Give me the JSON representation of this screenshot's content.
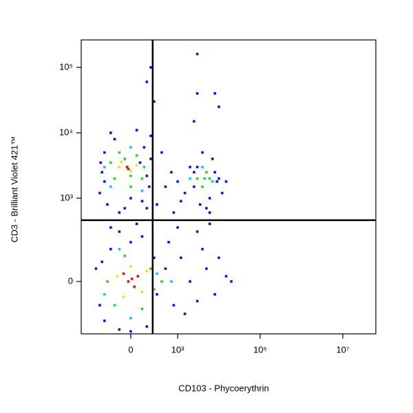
{
  "chart_data": {
    "type": "scatter",
    "xlabel": "CD103 - Phycoerythrin",
    "ylabel": "CD3 - Brilliant Violet 421™",
    "xscale": "asinh",
    "x_linear_width": 147,
    "yscale": "asinh",
    "y_linear_width": 107,
    "xlim": [
      -1157,
      63000000
    ],
    "ylim": [
      -329,
      262800
    ],
    "xticks": [
      0,
      {
        "value": 1000,
        "label": "10³"
      },
      {
        "value": 100000,
        "label": "10⁵"
      },
      {
        "value": 10000000,
        "label": "10⁷"
      }
    ],
    "yticks": [
      0,
      {
        "value": 1000,
        "label": "10³"
      },
      {
        "value": 10000,
        "label": "10⁴"
      },
      {
        "value": 100000,
        "label": "10⁵"
      }
    ],
    "gates": {
      "x": 228,
      "y": 457
    },
    "series": [
      {
        "color": "#1010e0",
        "x": [
          -400,
          -250,
          -100,
          150,
          100,
          -350,
          -300,
          -150,
          120,
          200,
          180,
          -200,
          50,
          -50,
          0,
          -300,
          150,
          80,
          -380,
          200,
          300,
          500,
          700,
          1000,
          1500,
          2000,
          1200,
          800,
          400,
          2500,
          3000,
          6000,
          8000,
          9000,
          5000,
          3500,
          7000,
          10000,
          15000,
          4000,
          2500,
          12000,
          6000,
          200,
          150,
          250,
          3000,
          3000,
          8000,
          10000,
          2500,
          -500,
          -400,
          -300,
          -200,
          150,
          250,
          300,
          500,
          800,
          1200,
          2000,
          3000,
          5000,
          8000,
          15000,
          20000,
          -100,
          0,
          600,
          1500,
          4000,
          10000,
          0,
          -350,
          -100,
          50,
          100,
          -200,
          1000,
          3000,
          6000
        ],
        "values": [
          1200,
          800,
          600,
          700,
          900,
          2500,
          5000,
          8000,
          6000,
          4000,
          1500,
          10000,
          11000,
          700,
          1000,
          1800,
          2200,
          3500,
          3500,
          9000,
          800,
          1500,
          2500,
          1800,
          1200,
          3000,
          900,
          600,
          5000,
          1500,
          3000,
          1000,
          2500,
          1800,
          700,
          800,
          4000,
          2000,
          1800,
          5000,
          2500,
          1200,
          600,
          100000,
          60000,
          30000,
          160000,
          40000,
          40000,
          25000,
          15000,
          50,
          -100,
          -200,
          150,
          -250,
          100,
          -50,
          50,
          -100,
          100,
          0,
          -80,
          50,
          -50,
          20,
          0,
          -280,
          200,
          200,
          -150,
          150,
          100,
          -300,
          80,
          300,
          400,
          250,
          350,
          350,
          300,
          400
        ]
      },
      {
        "color": "#10c8e8",
        "x": [
          -200,
          100,
          -300,
          120,
          0,
          2000,
          7000,
          4000,
          -300,
          300,
          0,
          -100,
          700
        ],
        "values": [
          1500,
          1300,
          3000,
          3000,
          6000,
          2000,
          1800,
          3000,
          -50,
          30,
          -180,
          150,
          0
        ]
      },
      {
        "color": "#30d030",
        "x": [
          -150,
          0,
          100,
          -50,
          50,
          -200,
          0,
          -100,
          3000,
          4000,
          5000,
          4500,
          6000,
          -250,
          200,
          100,
          -150,
          250,
          -50,
          400
        ],
        "values": [
          2000,
          2200,
          2000,
          4000,
          4500,
          3500,
          1500,
          5000,
          2000,
          1500,
          2500,
          2000,
          2000,
          0,
          50,
          -120,
          -100,
          -30,
          110,
          0
        ]
      },
      {
        "color": "#f0e020",
        "x": [
          -100,
          50,
          0,
          -80,
          -120,
          100,
          0,
          150,
          -60
        ],
        "values": [
          3000,
          3200,
          2600,
          3600,
          20,
          -40,
          60,
          40,
          -60
        ]
      },
      {
        "color": "#e81010",
        "x": [
          -30,
          -20,
          -20,
          30,
          60,
          -60,
          10
        ],
        "values": [
          3000,
          2800,
          0,
          -20,
          20,
          30,
          10
        ]
      }
    ]
  }
}
